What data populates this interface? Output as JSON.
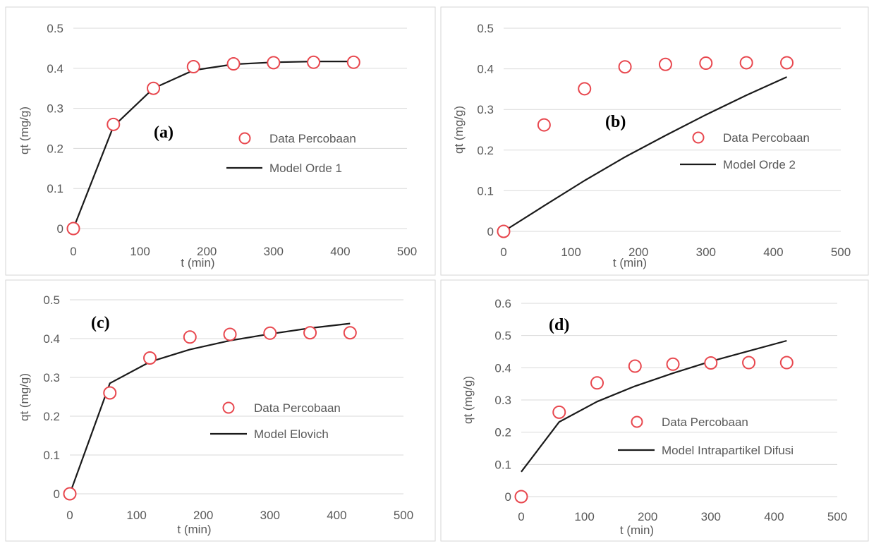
{
  "colors": {
    "marker": "#e8474e",
    "model_line": "#1a1a1a",
    "grid": "#d9d9d9",
    "text": "#595959",
    "panel_border": "#d6d6d6"
  },
  "chart_data": [
    {
      "type": "scatter",
      "panel_label": "(a)",
      "xlabel": "t (min)",
      "ylabel": "qt (mg/g)",
      "xlim": [
        0,
        500
      ],
      "ylim": [
        0,
        0.5
      ],
      "x_ticks": [
        "0",
        "100",
        "200",
        "300",
        "400",
        "500"
      ],
      "y_ticks": [
        "0",
        "0.1",
        "0.2",
        "0.3",
        "0.4",
        "0.5"
      ],
      "grid": true,
      "legend_position": "center-right",
      "series": [
        {
          "name": "Data Percobaan",
          "kind": "markers",
          "x": [
            0,
            60,
            120,
            180,
            240,
            300,
            360,
            420
          ],
          "y": [
            0,
            0.26,
            0.35,
            0.404,
            0.411,
            0.414,
            0.415,
            0.415
          ]
        },
        {
          "name": "Model Orde 1",
          "kind": "line",
          "x": [
            0,
            60,
            120,
            180,
            240,
            300,
            360,
            420
          ],
          "y": [
            0,
            0.255,
            0.35,
            0.395,
            0.41,
            0.415,
            0.417,
            0.417
          ]
        }
      ]
    },
    {
      "type": "scatter",
      "panel_label": "(b)",
      "xlabel": "t (min)",
      "ylabel": "qt (mg/g)",
      "xlim": [
        0,
        500
      ],
      "ylim": [
        0,
        0.5
      ],
      "x_ticks": [
        "0",
        "100",
        "200",
        "300",
        "400",
        "500"
      ],
      "y_ticks": [
        "0",
        "0.1",
        "0.2",
        "0.3",
        "0.4",
        "0.5"
      ],
      "grid": true,
      "legend_position": "center-right",
      "series": [
        {
          "name": "Data Percobaan",
          "kind": "markers",
          "x": [
            0,
            60,
            120,
            180,
            240,
            300,
            360,
            420
          ],
          "y": [
            0,
            0.262,
            0.351,
            0.405,
            0.411,
            0.414,
            0.415,
            0.415
          ]
        },
        {
          "name": "Model Orde 2",
          "kind": "line",
          "x": [
            0,
            60,
            120,
            180,
            240,
            300,
            360,
            420
          ],
          "y": [
            0,
            0.063,
            0.125,
            0.183,
            0.236,
            0.287,
            0.335,
            0.38
          ]
        }
      ]
    },
    {
      "type": "scatter",
      "panel_label": "(c)",
      "xlabel": "t (min)",
      "ylabel": "qt (mg/g)",
      "xlim": [
        0,
        500
      ],
      "ylim": [
        0,
        0.5
      ],
      "x_ticks": [
        "0",
        "100",
        "200",
        "300",
        "400",
        "500"
      ],
      "y_ticks": [
        "0",
        "0.1",
        "0.2",
        "0.3",
        "0.4",
        "0.5"
      ],
      "grid": true,
      "legend_position": "center-right",
      "series": [
        {
          "name": "Data Percobaan",
          "kind": "markers",
          "x": [
            0,
            60,
            120,
            180,
            240,
            300,
            360,
            420
          ],
          "y": [
            0,
            0.26,
            0.35,
            0.404,
            0.411,
            0.414,
            0.415,
            0.415
          ]
        },
        {
          "name": "Model Elovich",
          "kind": "line",
          "x": [
            0,
            60,
            120,
            180,
            240,
            300,
            360,
            420
          ],
          "y": [
            0,
            0.285,
            0.34,
            0.372,
            0.395,
            0.412,
            0.427,
            0.439
          ]
        }
      ]
    },
    {
      "type": "scatter",
      "panel_label": "(d)",
      "xlabel": "t (min)",
      "ylabel": "qt (mg/g)",
      "xlim": [
        0,
        500
      ],
      "ylim": [
        0,
        0.6
      ],
      "x_ticks": [
        "0",
        "100",
        "200",
        "300",
        "400",
        "500"
      ],
      "y_ticks": [
        "0",
        "0.1",
        "0.2",
        "0.3",
        "0.4",
        "0.5",
        "0.6"
      ],
      "grid": true,
      "legend_position": "center-right",
      "series": [
        {
          "name": "Data Percobaan",
          "kind": "markers",
          "x": [
            0,
            60,
            120,
            180,
            240,
            300,
            360,
            420
          ],
          "y": [
            0,
            0.262,
            0.353,
            0.405,
            0.411,
            0.415,
            0.416,
            0.416
          ]
        },
        {
          "name": "Model Intrapartikel Difusi",
          "kind": "line",
          "x": [
            0,
            60,
            120,
            180,
            240,
            300,
            360,
            420
          ],
          "y": [
            0.077,
            0.232,
            0.295,
            0.343,
            0.383,
            0.42,
            0.452,
            0.484
          ]
        }
      ]
    }
  ]
}
